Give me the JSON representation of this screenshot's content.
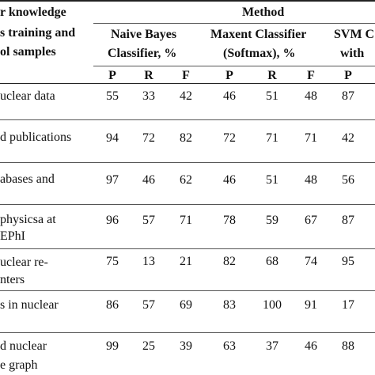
{
  "header": {
    "left_lines": [
      "r knowledge",
      "s training and",
      "ol samples"
    ],
    "method": "Method",
    "methods": [
      {
        "line1": "Naive Bayes",
        "line2": "Classifier, %"
      },
      {
        "line1": "Maxent Classifier",
        "line2": "(Softmax), %"
      },
      {
        "line1": "SVM C",
        "line2": "with"
      }
    ],
    "subcols": [
      "P",
      "R",
      "F",
      "P",
      "R",
      "F",
      "P"
    ]
  },
  "rows": [
    {
      "label_lines": [
        "uclear data"
      ],
      "values": [
        "55",
        "33",
        "42",
        "46",
        "51",
        "48",
        "87"
      ]
    },
    {
      "label_lines": [
        "d publications"
      ],
      "values": [
        "94",
        "72",
        "82",
        "72",
        "71",
        "71",
        "42"
      ]
    },
    {
      "label_lines": [
        "abases and"
      ],
      "values": [
        "97",
        "46",
        "62",
        "46",
        "51",
        "48",
        "56"
      ]
    },
    {
      "label_lines": [
        "physicsa at",
        "EPhI"
      ],
      "values": [
        "96",
        "57",
        "71",
        "78",
        "59",
        "67",
        "87"
      ]
    },
    {
      "label_lines": [
        "uclear re-",
        "nters"
      ],
      "values": [
        "75",
        "13",
        "21",
        "82",
        "68",
        "74",
        "95"
      ]
    },
    {
      "label_lines": [
        "s in nuclear"
      ],
      "values": [
        "86",
        "57",
        "69",
        "83",
        "100",
        "91",
        "17"
      ]
    },
    {
      "label_lines": [
        "d nuclear",
        "e graph"
      ],
      "values": [
        "99",
        "25",
        "39",
        "63",
        "37",
        "46",
        "88"
      ]
    }
  ]
}
